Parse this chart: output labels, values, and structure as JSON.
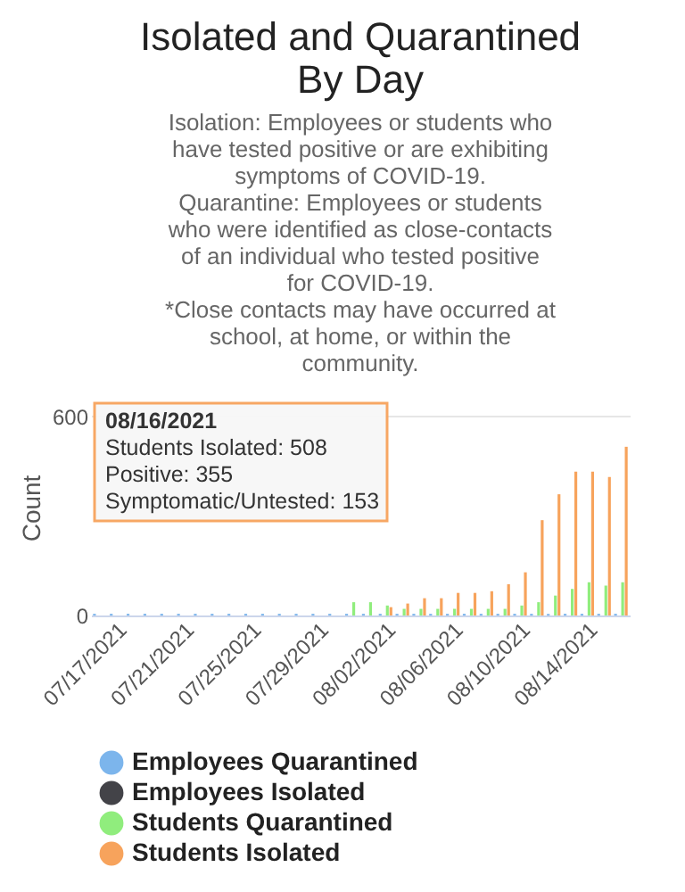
{
  "chart_data": {
    "type": "bar",
    "title": "Isolated and Quarantined\nBy Day",
    "subtitle": "Isolation: Employees or students who\nhave tested positive or are exhibiting\nsymptoms of COVID-19.\nQuarantine: Employees or students\nwho were identified as close-contacts\nof an individual who tested positive\nfor COVID-19.\n*Close contacts may have occurred at\nschool, at home, or within the\ncommunity.",
    "ylabel": "Count",
    "categories": [
      null,
      "07/17/2021",
      null,
      null,
      null,
      "07/21/2021",
      null,
      null,
      null,
      "07/25/2021",
      null,
      null,
      null,
      "07/29/2021",
      null,
      null,
      null,
      "08/02/2021",
      null,
      null,
      null,
      "08/06/2021",
      null,
      null,
      null,
      "08/10/2021",
      null,
      null,
      null,
      "08/14/2021",
      null,
      null
    ],
    "series": [
      {
        "name": "Employees Quarantined",
        "color": "#7cb5ec",
        "values": [
          5,
          5,
          5,
          5,
          5,
          5,
          5,
          5,
          5,
          5,
          5,
          5,
          5,
          5,
          5,
          5,
          5,
          5,
          5,
          5,
          5,
          5,
          5,
          5,
          5,
          5,
          5,
          5,
          5,
          5,
          5,
          5
        ]
      },
      {
        "name": "Employees Isolated",
        "color": "#434348",
        "values": [
          0,
          0,
          0,
          0,
          0,
          0,
          0,
          0,
          0,
          0,
          0,
          0,
          0,
          0,
          0,
          0,
          0,
          0,
          0,
          0,
          0,
          0,
          0,
          0,
          0,
          0,
          0,
          0,
          0,
          0,
          0,
          0
        ]
      },
      {
        "name": "Students Quarantined",
        "color": "#90ed7d",
        "values": [
          0,
          0,
          0,
          0,
          0,
          0,
          0,
          0,
          0,
          0,
          0,
          0,
          0,
          0,
          0,
          40,
          40,
          30,
          20,
          20,
          20,
          20,
          20,
          20,
          20,
          30,
          40,
          60,
          80,
          100,
          90,
          100
        ]
      },
      {
        "name": "Students Isolated",
        "color": "#f7a35c",
        "values": [
          0,
          0,
          0,
          0,
          0,
          0,
          0,
          0,
          0,
          0,
          0,
          0,
          0,
          0,
          0,
          0,
          0,
          25,
          36,
          52,
          52,
          68,
          68,
          73,
          94,
          130,
          287,
          365,
          433,
          433,
          417,
          508
        ]
      }
    ],
    "ylim": [
      0,
      650
    ],
    "yticks": [
      0,
      600
    ],
    "grid": "y",
    "legend": "bottom",
    "annotations": [
      "08/16/2021",
      "Students Isolated: 508",
      "Positive: 355",
      "Symptomatic/Untested: 153"
    ]
  }
}
